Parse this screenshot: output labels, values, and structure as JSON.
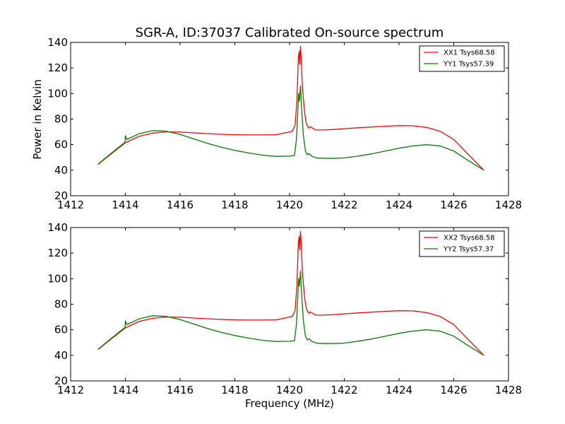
{
  "chart_data": {
    "type": "line",
    "title": "SGR-A, ID:37037 Calibrated On-source spectrum",
    "xlabel": "Frequency (MHz)",
    "ylabel": "Power in Kelvin",
    "xlim": [
      1412,
      1428
    ],
    "ylim": [
      20,
      140
    ],
    "xticks": [
      1412,
      1414,
      1416,
      1418,
      1420,
      1422,
      1424,
      1426,
      1428
    ],
    "yticks": [
      20,
      40,
      60,
      80,
      100,
      120,
      140
    ],
    "legend_position": "top-right",
    "panels": [
      {
        "ylabel": "Power in Kelvin",
        "xlabel": "",
        "series": [
          {
            "name": "XX1 Tsys68.58",
            "color": "#ff0000",
            "points": [
              [
                1413.0,
                44.5
              ],
              [
                1413.5,
                53
              ],
              [
                1414.0,
                61.5
              ],
              [
                1414.5,
                66.5
              ],
              [
                1415.0,
                69
              ],
              [
                1415.5,
                70
              ],
              [
                1416.0,
                69.8
              ],
              [
                1416.5,
                69.2
              ],
              [
                1417.0,
                68.6
              ],
              [
                1417.5,
                68.1
              ],
              [
                1418.0,
                67.8
              ],
              [
                1418.5,
                67.6
              ],
              [
                1419.0,
                67.6
              ],
              [
                1419.5,
                67.8
              ],
              [
                1419.8,
                69
              ],
              [
                1420.1,
                70.5
              ],
              [
                1420.2,
                75
              ],
              [
                1420.27,
                95
              ],
              [
                1420.32,
                128
              ],
              [
                1420.35,
                133
              ],
              [
                1420.37,
                123
              ],
              [
                1420.4,
                137
              ],
              [
                1420.43,
                125
              ],
              [
                1420.47,
                105
              ],
              [
                1420.55,
                85
              ],
              [
                1420.62,
                76
              ],
              [
                1420.7,
                73
              ],
              [
                1420.75,
                74
              ],
              [
                1420.8,
                73.5
              ],
              [
                1420.95,
                71.5
              ],
              [
                1421.2,
                71.5
              ],
              [
                1421.6,
                71.8
              ],
              [
                1422.0,
                72.5
              ],
              [
                1422.5,
                73.2
              ],
              [
                1423.0,
                73.8
              ],
              [
                1423.5,
                74.4
              ],
              [
                1424.0,
                74.9
              ],
              [
                1424.5,
                74.8
              ],
              [
                1425.0,
                73.5
              ],
              [
                1425.5,
                70.5
              ],
              [
                1426.0,
                64
              ],
              [
                1426.5,
                53
              ],
              [
                1427.1,
                40
              ]
            ]
          },
          {
            "name": "YY1 Tsys57.39",
            "color": "#008000",
            "points": [
              [
                1413.0,
                44.8
              ],
              [
                1413.5,
                53.5
              ],
              [
                1413.99,
                62
              ],
              [
                1414.0,
                67
              ],
              [
                1414.02,
                66
              ],
              [
                1414.05,
                64
              ],
              [
                1414.5,
                68.5
              ],
              [
                1415.0,
                71
              ],
              [
                1415.5,
                70.5
              ],
              [
                1416.0,
                68
              ],
              [
                1416.5,
                64.5
              ],
              [
                1417.0,
                61
              ],
              [
                1417.5,
                58
              ],
              [
                1418.0,
                55.5
              ],
              [
                1418.5,
                53.5
              ],
              [
                1419.0,
                51.8
              ],
              [
                1419.5,
                50.8
              ],
              [
                1420.0,
                51
              ],
              [
                1420.18,
                51.5
              ],
              [
                1420.25,
                64
              ],
              [
                1420.3,
                85
              ],
              [
                1420.33,
                100
              ],
              [
                1420.36,
                94
              ],
              [
                1420.4,
                106
              ],
              [
                1420.44,
                88
              ],
              [
                1420.5,
                68
              ],
              [
                1420.58,
                55
              ],
              [
                1420.65,
                52
              ],
              [
                1420.72,
                53
              ],
              [
                1420.8,
                51
              ],
              [
                1421.0,
                49.5
              ],
              [
                1421.5,
                49.2
              ],
              [
                1422.0,
                49.6
              ],
              [
                1422.5,
                51
              ],
              [
                1423.0,
                52.8
              ],
              [
                1423.5,
                55
              ],
              [
                1424.0,
                57.2
              ],
              [
                1424.5,
                59
              ],
              [
                1425.0,
                60
              ],
              [
                1425.5,
                59
              ],
              [
                1426.0,
                55
              ],
              [
                1426.5,
                48
              ],
              [
                1427.1,
                40
              ]
            ]
          }
        ]
      },
      {
        "ylabel": "",
        "xlabel": "Frequency (MHz)",
        "series": [
          {
            "name": "XX2 Tsys68.58",
            "color": "#ff0000",
            "points": [
              [
                1413.0,
                44.5
              ],
              [
                1413.5,
                53
              ],
              [
                1414.0,
                61.5
              ],
              [
                1414.5,
                66.5
              ],
              [
                1415.0,
                69
              ],
              [
                1415.5,
                70
              ],
              [
                1416.0,
                69.8
              ],
              [
                1416.5,
                69.2
              ],
              [
                1417.0,
                68.6
              ],
              [
                1417.5,
                68.1
              ],
              [
                1418.0,
                67.8
              ],
              [
                1418.5,
                67.6
              ],
              [
                1419.0,
                67.6
              ],
              [
                1419.5,
                67.8
              ],
              [
                1419.8,
                69
              ],
              [
                1420.1,
                70.5
              ],
              [
                1420.2,
                75
              ],
              [
                1420.27,
                95
              ],
              [
                1420.32,
                128
              ],
              [
                1420.35,
                133
              ],
              [
                1420.37,
                123
              ],
              [
                1420.4,
                137
              ],
              [
                1420.43,
                125
              ],
              [
                1420.47,
                105
              ],
              [
                1420.55,
                85
              ],
              [
                1420.62,
                76
              ],
              [
                1420.7,
                73
              ],
              [
                1420.75,
                74
              ],
              [
                1420.8,
                73.5
              ],
              [
                1420.95,
                71.5
              ],
              [
                1421.2,
                71.5
              ],
              [
                1421.6,
                71.8
              ],
              [
                1422.0,
                72.5
              ],
              [
                1422.5,
                73.2
              ],
              [
                1423.0,
                73.8
              ],
              [
                1423.5,
                74.4
              ],
              [
                1424.0,
                74.9
              ],
              [
                1424.5,
                74.8
              ],
              [
                1425.0,
                73.5
              ],
              [
                1425.5,
                70.5
              ],
              [
                1426.0,
                64
              ],
              [
                1426.5,
                53
              ],
              [
                1427.1,
                40
              ]
            ]
          },
          {
            "name": "YY2 Tsys57.37",
            "color": "#008000",
            "points": [
              [
                1413.0,
                44.8
              ],
              [
                1413.5,
                53.5
              ],
              [
                1413.99,
                62
              ],
              [
                1414.0,
                67
              ],
              [
                1414.02,
                66
              ],
              [
                1414.05,
                64
              ],
              [
                1414.5,
                68.5
              ],
              [
                1415.0,
                71
              ],
              [
                1415.5,
                70.5
              ],
              [
                1416.0,
                68
              ],
              [
                1416.5,
                64.5
              ],
              [
                1417.0,
                61
              ],
              [
                1417.5,
                58
              ],
              [
                1418.0,
                55.5
              ],
              [
                1418.5,
                53.5
              ],
              [
                1419.0,
                51.8
              ],
              [
                1419.5,
                50.8
              ],
              [
                1420.0,
                51
              ],
              [
                1420.18,
                51.5
              ],
              [
                1420.25,
                64
              ],
              [
                1420.3,
                85
              ],
              [
                1420.33,
                100
              ],
              [
                1420.36,
                94
              ],
              [
                1420.4,
                106
              ],
              [
                1420.44,
                88
              ],
              [
                1420.5,
                68
              ],
              [
                1420.58,
                55
              ],
              [
                1420.65,
                52
              ],
              [
                1420.72,
                53
              ],
              [
                1420.8,
                51
              ],
              [
                1421.0,
                49.5
              ],
              [
                1421.5,
                49.2
              ],
              [
                1422.0,
                49.6
              ],
              [
                1422.5,
                51
              ],
              [
                1423.0,
                52.8
              ],
              [
                1423.5,
                55
              ],
              [
                1424.0,
                57.2
              ],
              [
                1424.5,
                59
              ],
              [
                1425.0,
                60
              ],
              [
                1425.5,
                59
              ],
              [
                1426.0,
                55
              ],
              [
                1426.5,
                48
              ],
              [
                1427.1,
                40
              ]
            ]
          }
        ]
      }
    ]
  }
}
